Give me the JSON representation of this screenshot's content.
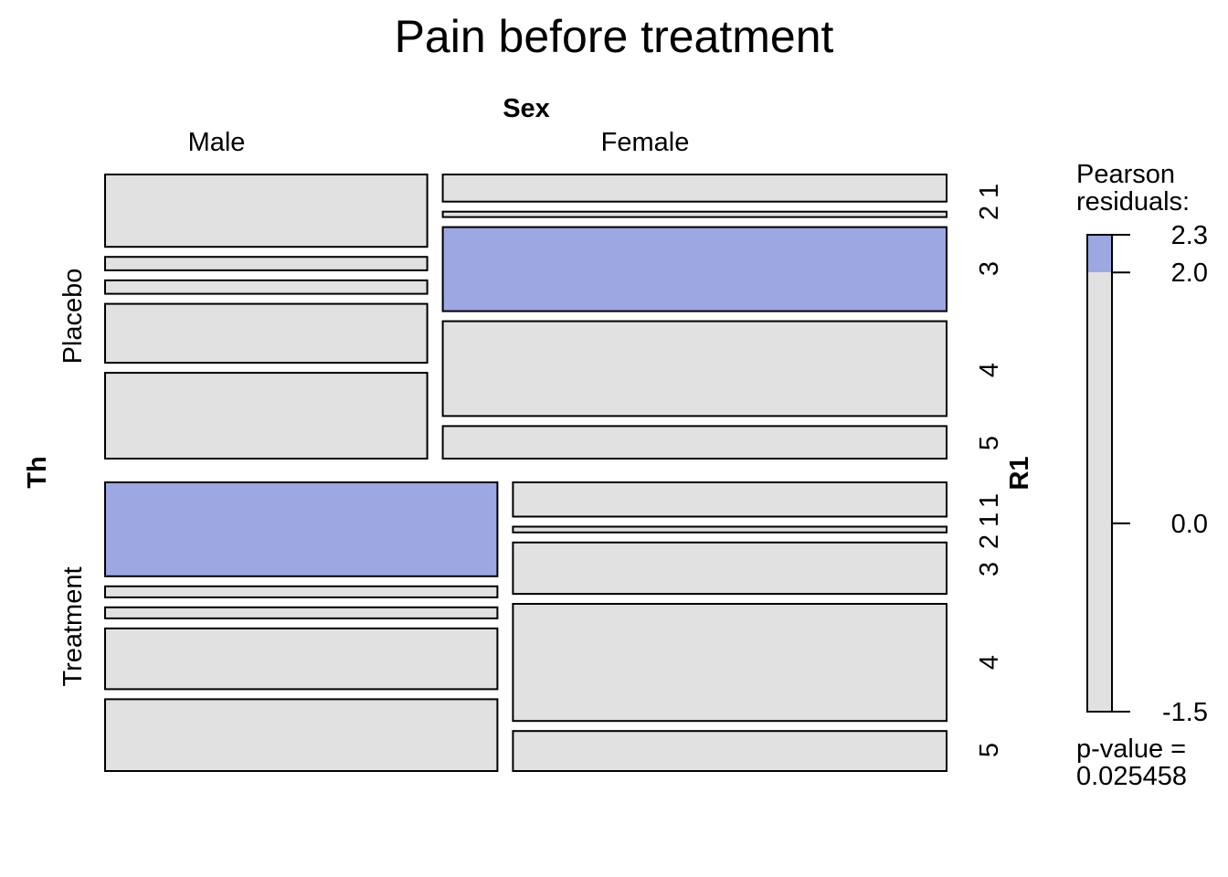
{
  "chart_data": {
    "type": "mosaic",
    "title": "Pain before treatment",
    "column_variable": "Sex",
    "row_variable": "Th",
    "inner_variable": "R1",
    "columns": [
      "Male",
      "Female"
    ],
    "rows": [
      "Placebo",
      "Treatment"
    ],
    "r1_levels": [
      "1",
      "2",
      "3",
      "4",
      "5"
    ],
    "cell_proportions": [
      {
        "th": "Placebo",
        "sex": "Male",
        "share_of_row": 0.39,
        "r1": [
          0.27,
          0.05,
          0.05,
          0.22,
          0.32
        ],
        "highlight": [
          false,
          false,
          false,
          false,
          false
        ]
      },
      {
        "th": "Placebo",
        "sex": "Female",
        "share_of_row": 0.61,
        "r1": [
          0.1,
          0.02,
          0.31,
          0.35,
          0.12
        ],
        "highlight": [
          false,
          false,
          true,
          false,
          false
        ]
      },
      {
        "th": "Treatment",
        "sex": "Male",
        "share_of_row": 0.475,
        "r1": [
          0.34,
          0.04,
          0.04,
          0.22,
          0.26
        ],
        "highlight": [
          true,
          false,
          false,
          false,
          false
        ]
      },
      {
        "th": "Treatment",
        "sex": "Female",
        "share_of_row": 0.525,
        "r1": [
          0.12,
          0.02,
          0.18,
          0.41,
          0.14
        ],
        "highlight": [
          false,
          false,
          false,
          false,
          false
        ]
      }
    ],
    "r1_labels_placebo": [
      "2 1",
      "3",
      "4",
      "5"
    ],
    "r1_labels_treatment": [
      "1",
      "2 1",
      "3",
      "4",
      "5"
    ],
    "legend": {
      "title_line1": "Pearson",
      "title_line2": "residuals:",
      "ticks": [
        {
          "value": 2.3,
          "label": "2.3"
        },
        {
          "value": 2.0,
          "label": "2.0"
        },
        {
          "value": 0.0,
          "label": "0.0"
        },
        {
          "value": -1.5,
          "label": "-1.5"
        }
      ],
      "min": -1.5,
      "max": 2.3,
      "threshold": 2.0,
      "pvalue_line1": "p-value =",
      "pvalue_line2": "0.025458"
    },
    "colors": {
      "positive": "#9DA7E2",
      "neutral": "#E1E1E1",
      "border": "#000000"
    }
  }
}
